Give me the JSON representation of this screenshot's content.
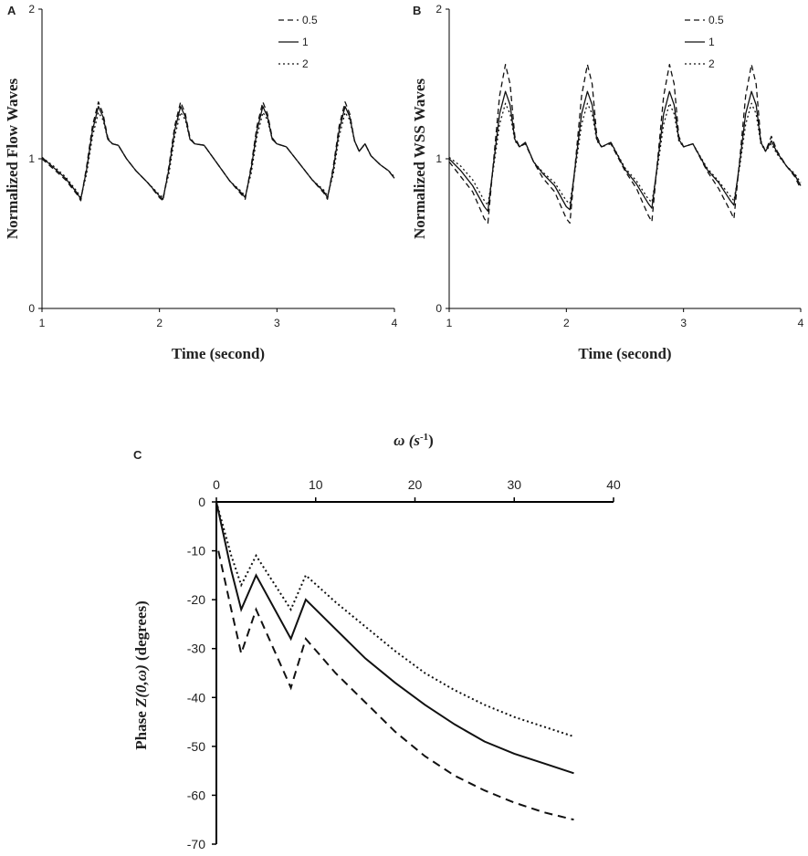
{
  "chart_data": [
    {
      "panel": "A",
      "type": "line",
      "xlabel": "Time (second)",
      "ylabel": "Normalized Flow Waves",
      "xlim": [
        1,
        4
      ],
      "ylim": [
        0,
        2
      ],
      "x_ticks": [
        "1",
        "2",
        "3",
        "4"
      ],
      "y_ticks": [
        "0",
        "1",
        "2"
      ],
      "legend": [
        "0.5",
        "1",
        "2"
      ],
      "x": [
        1.0,
        1.1,
        1.2,
        1.3,
        1.33,
        1.38,
        1.43,
        1.48,
        1.52,
        1.56,
        1.6,
        1.65,
        1.72,
        1.8,
        1.9,
        2.0,
        2.03,
        2.08,
        2.13,
        2.18,
        2.22,
        2.26,
        2.3,
        2.38,
        2.5,
        2.6,
        2.7,
        2.73,
        2.78,
        2.83,
        2.88,
        2.92,
        2.96,
        3.0,
        3.08,
        3.2,
        3.3,
        3.4,
        3.43,
        3.48,
        3.53,
        3.58,
        3.62,
        3.66,
        3.7,
        3.75,
        3.8,
        3.88,
        3.95,
        4.0
      ],
      "series": [
        {
          "name": "0.5",
          "values": [
            1.0,
            0.93,
            0.86,
            0.76,
            0.72,
            0.95,
            1.22,
            1.38,
            1.3,
            1.14,
            1.1,
            1.09,
            1.0,
            0.92,
            0.84,
            0.74,
            0.72,
            0.95,
            1.22,
            1.38,
            1.3,
            1.14,
            1.1,
            1.09,
            0.96,
            0.85,
            0.76,
            0.73,
            0.95,
            1.22,
            1.38,
            1.3,
            1.14,
            1.1,
            1.08,
            0.96,
            0.86,
            0.77,
            0.73,
            0.95,
            1.22,
            1.38,
            1.3,
            1.12,
            1.05,
            1.1,
            1.02,
            0.96,
            0.92,
            0.87
          ]
        },
        {
          "name": "1",
          "values": [
            1.01,
            0.94,
            0.87,
            0.77,
            0.73,
            0.93,
            1.19,
            1.35,
            1.28,
            1.13,
            1.1,
            1.09,
            1.0,
            0.92,
            0.84,
            0.75,
            0.73,
            0.93,
            1.19,
            1.35,
            1.28,
            1.13,
            1.1,
            1.09,
            0.96,
            0.85,
            0.77,
            0.74,
            0.93,
            1.19,
            1.35,
            1.28,
            1.13,
            1.1,
            1.08,
            0.96,
            0.86,
            0.78,
            0.74,
            0.93,
            1.19,
            1.35,
            1.28,
            1.12,
            1.05,
            1.1,
            1.02,
            0.96,
            0.92,
            0.87
          ]
        },
        {
          "name": "2",
          "values": [
            1.01,
            0.95,
            0.88,
            0.78,
            0.74,
            0.9,
            1.15,
            1.31,
            1.26,
            1.13,
            1.1,
            1.09,
            1.0,
            0.92,
            0.84,
            0.76,
            0.74,
            0.9,
            1.15,
            1.31,
            1.26,
            1.13,
            1.1,
            1.09,
            0.96,
            0.85,
            0.78,
            0.75,
            0.9,
            1.15,
            1.31,
            1.26,
            1.13,
            1.1,
            1.08,
            0.96,
            0.86,
            0.79,
            0.75,
            0.9,
            1.15,
            1.31,
            1.26,
            1.12,
            1.05,
            1.1,
            1.02,
            0.96,
            0.92,
            0.88
          ]
        }
      ]
    },
    {
      "panel": "B",
      "type": "line",
      "xlabel": "Time (second)",
      "ylabel": "Normalized WSS Waves",
      "xlim": [
        1,
        4
      ],
      "ylim": [
        0,
        2
      ],
      "x_ticks": [
        "1",
        "2",
        "3",
        "4"
      ],
      "y_ticks": [
        "0",
        "1",
        "2"
      ],
      "legend": [
        "0.5",
        "1",
        "2"
      ],
      "x": [
        1.0,
        1.1,
        1.2,
        1.3,
        1.33,
        1.38,
        1.43,
        1.48,
        1.52,
        1.56,
        1.6,
        1.65,
        1.72,
        1.8,
        1.9,
        2.0,
        2.03,
        2.08,
        2.13,
        2.18,
        2.22,
        2.26,
        2.3,
        2.38,
        2.5,
        2.6,
        2.7,
        2.73,
        2.78,
        2.83,
        2.88,
        2.92,
        2.96,
        3.0,
        3.08,
        3.2,
        3.3,
        3.4,
        3.43,
        3.48,
        3.53,
        3.58,
        3.62,
        3.66,
        3.7,
        3.75,
        3.8,
        3.88,
        3.95,
        4.0
      ],
      "series": [
        {
          "name": "0.5",
          "values": [
            0.98,
            0.88,
            0.78,
            0.6,
            0.57,
            1.0,
            1.42,
            1.63,
            1.5,
            1.15,
            1.08,
            1.1,
            0.98,
            0.87,
            0.78,
            0.6,
            0.57,
            1.0,
            1.42,
            1.63,
            1.5,
            1.15,
            1.08,
            1.1,
            0.92,
            0.8,
            0.62,
            0.58,
            1.0,
            1.42,
            1.63,
            1.5,
            1.15,
            1.08,
            1.1,
            0.92,
            0.8,
            0.65,
            0.6,
            1.0,
            1.42,
            1.63,
            1.5,
            1.12,
            1.05,
            1.15,
            1.05,
            0.95,
            0.88,
            0.8
          ]
        },
        {
          "name": "1",
          "values": [
            1.0,
            0.92,
            0.82,
            0.68,
            0.65,
            0.98,
            1.3,
            1.45,
            1.36,
            1.13,
            1.08,
            1.11,
            0.98,
            0.9,
            0.82,
            0.68,
            0.66,
            0.98,
            1.3,
            1.45,
            1.36,
            1.13,
            1.08,
            1.11,
            0.93,
            0.83,
            0.7,
            0.67,
            0.98,
            1.3,
            1.45,
            1.36,
            1.13,
            1.08,
            1.1,
            0.93,
            0.84,
            0.72,
            0.69,
            0.98,
            1.3,
            1.45,
            1.36,
            1.11,
            1.05,
            1.12,
            1.04,
            0.95,
            0.89,
            0.82
          ]
        },
        {
          "name": "2",
          "values": [
            1.01,
            0.95,
            0.86,
            0.72,
            0.69,
            0.95,
            1.23,
            1.37,
            1.3,
            1.12,
            1.08,
            1.11,
            0.98,
            0.91,
            0.84,
            0.72,
            0.7,
            0.95,
            1.23,
            1.37,
            1.3,
            1.12,
            1.08,
            1.11,
            0.94,
            0.85,
            0.73,
            0.71,
            0.95,
            1.23,
            1.37,
            1.3,
            1.12,
            1.08,
            1.1,
            0.94,
            0.85,
            0.75,
            0.72,
            0.95,
            1.23,
            1.37,
            1.3,
            1.1,
            1.05,
            1.1,
            1.03,
            0.95,
            0.9,
            0.84
          ]
        }
      ]
    },
    {
      "panel": "C",
      "type": "line",
      "title": "ω (s",
      "title_sup": "-1",
      "title_close": ")",
      "ylabel_prefix": "Phase ",
      "ylabel_italic": "Z(0,ω)",
      "ylabel_suffix": " (degrees)",
      "xlim": [
        0,
        40
      ],
      "ylim": [
        -70,
        0
      ],
      "x_ticks": [
        "0",
        "10",
        "20",
        "30",
        "40"
      ],
      "y_ticks": [
        "0",
        "-10",
        "-20",
        "-30",
        "-40",
        "-50",
        "-60",
        "-70"
      ],
      "series": [
        {
          "name": "0.5",
          "x": [
            0.2,
            1.5,
            2.5,
            4.0,
            7.5,
            9.0,
            12,
            15,
            18,
            21,
            24,
            27,
            30,
            33,
            36
          ],
          "values": [
            -10,
            -22,
            -31,
            -22,
            -38,
            -28,
            -35,
            -41,
            -47,
            -52,
            -56,
            -59,
            -61.5,
            -63.5,
            -65
          ]
        },
        {
          "name": "1",
          "x": [
            0,
            1.5,
            2.5,
            4.0,
            7.5,
            9.0,
            12,
            15,
            18,
            21,
            24,
            27,
            30,
            33,
            36
          ],
          "values": [
            0,
            -14,
            -22,
            -15,
            -28,
            -20,
            -26,
            -32,
            -37,
            -41.5,
            -45.5,
            -49,
            -51.5,
            -53.5,
            -55.5
          ]
        },
        {
          "name": "2",
          "x": [
            0,
            1.5,
            2.5,
            4.0,
            7.5,
            9.0,
            12,
            15,
            18,
            21,
            24,
            27,
            30,
            33,
            36
          ],
          "values": [
            0,
            -11,
            -17,
            -11,
            -22,
            -15,
            -20.5,
            -25.5,
            -30.5,
            -35,
            -38.5,
            -41.5,
            -44,
            -46,
            -48
          ]
        }
      ]
    }
  ]
}
